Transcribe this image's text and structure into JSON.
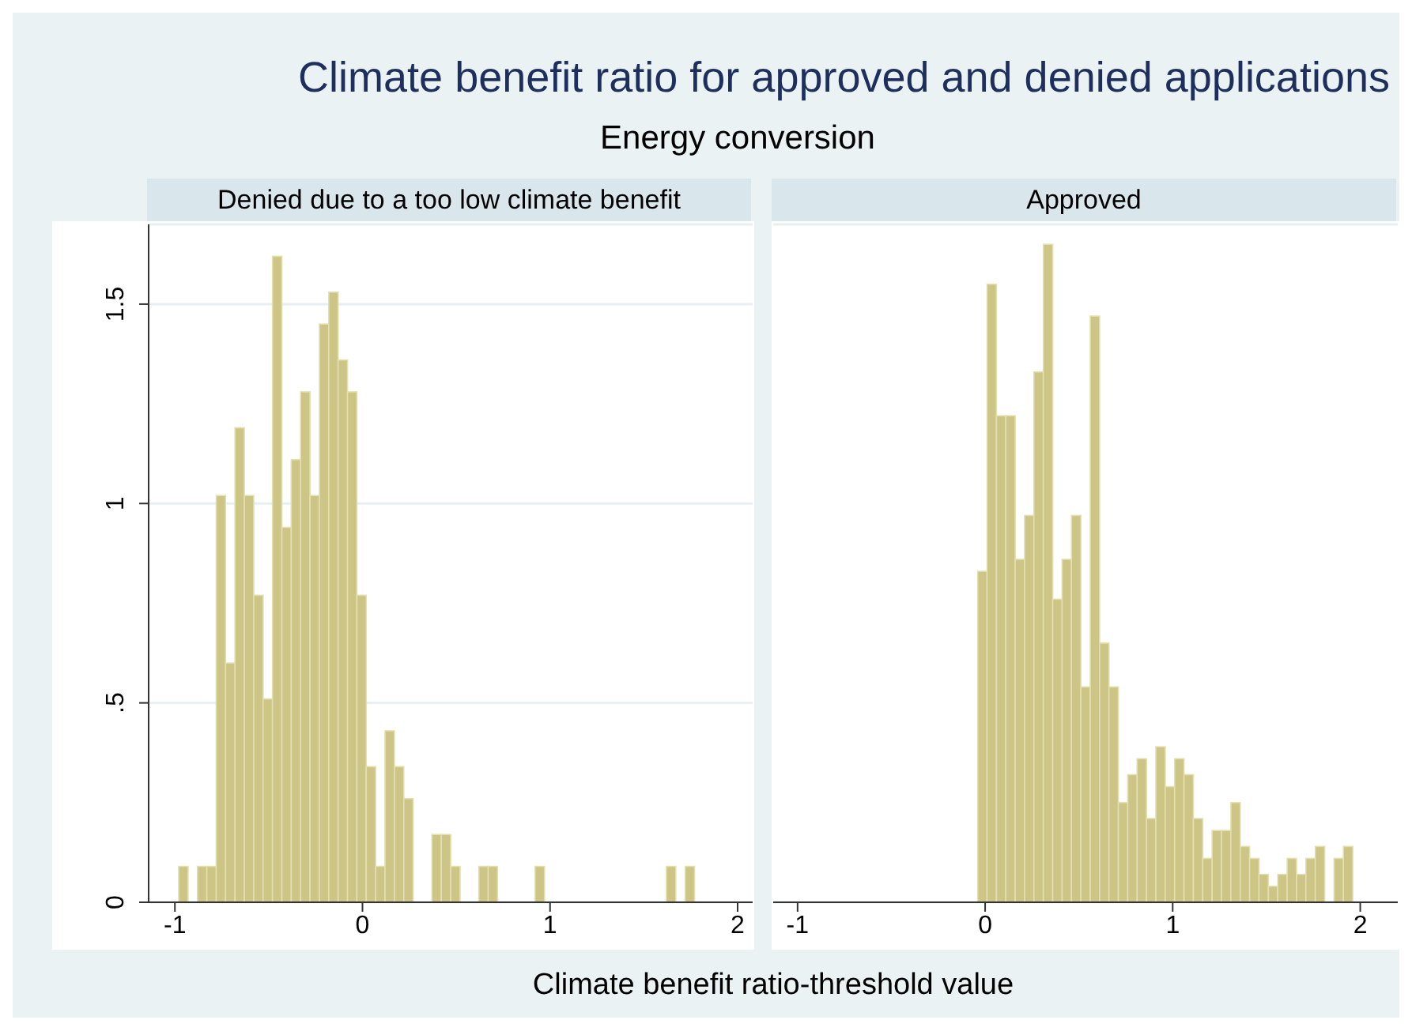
{
  "chart_data": [
    {
      "type": "histogram",
      "title": "Denied due to a too low climate benefit",
      "annotations": [
        "Climate benefit ratio for approved and denied applications",
        "Energy conversion"
      ],
      "xlabel": "Climate benefit ratio-threshold value",
      "color": "#cdc585",
      "bins": [
        -0.98,
        -0.93,
        -0.88,
        -0.83,
        -0.78,
        -0.73,
        -0.68,
        -0.63,
        -0.58,
        -0.53,
        -0.48,
        -0.43,
        -0.38,
        -0.33,
        -0.28,
        -0.23,
        -0.18,
        -0.13,
        -0.08,
        -0.03,
        0.02,
        0.07,
        0.12,
        0.17,
        0.22,
        0.27,
        0.32,
        0.37,
        0.42,
        0.47,
        0.52,
        0.57,
        0.62,
        0.67,
        0.72,
        0.77,
        0.82,
        0.87,
        0.92,
        0.97,
        1.02,
        1.07,
        1.12,
        1.17,
        1.22,
        1.27,
        1.32,
        1.37,
        1.42,
        1.47,
        1.52,
        1.57,
        1.62,
        1.67,
        1.72,
        1.77
      ],
      "values": [
        0.09,
        0,
        0.09,
        0.09,
        1.02,
        0.6,
        1.19,
        1.02,
        0.77,
        0.51,
        1.62,
        0.94,
        1.11,
        1.28,
        1.02,
        1.45,
        1.53,
        1.36,
        1.28,
        0.77,
        0.34,
        0.09,
        0.43,
        0.34,
        0.26,
        0,
        0,
        0.17,
        0.17,
        0.09,
        0,
        0,
        0.09,
        0.09,
        0,
        0,
        0,
        0,
        0.09,
        0,
        0,
        0,
        0,
        0,
        0,
        0,
        0,
        0,
        0,
        0,
        0,
        0,
        0.09,
        0,
        0.09
      ],
      "xlim": [
        -1.14,
        2.08
      ],
      "xticks": [
        -1,
        0,
        1,
        2
      ],
      "ylim": [
        0,
        1.7
      ],
      "yticks": [
        0,
        {
          "value": 0.5,
          "label": ".5"
        },
        1,
        1.5
      ],
      "grid": "y"
    },
    {
      "type": "histogram",
      "title": "Approved",
      "color": "#cdc585",
      "bins": [
        -0.04,
        0.01,
        0.06,
        0.11,
        0.16,
        0.21,
        0.26,
        0.31,
        0.36,
        0.41,
        0.46,
        0.51,
        0.56,
        0.61,
        0.66,
        0.71,
        0.76,
        0.81,
        0.86,
        0.91,
        0.96,
        1.01,
        1.06,
        1.11,
        1.16,
        1.21,
        1.26,
        1.31,
        1.36,
        1.41,
        1.46,
        1.51,
        1.56,
        1.61,
        1.66,
        1.71,
        1.76,
        1.81,
        1.86,
        1.91,
        1.96
      ],
      "values": [
        0.83,
        1.55,
        1.22,
        1.22,
        0.86,
        0.97,
        1.33,
        1.65,
        0.76,
        0.86,
        0.97,
        0.54,
        1.47,
        0.65,
        0.54,
        0.25,
        0.32,
        0.36,
        0.21,
        0.39,
        0.29,
        0.36,
        0.32,
        0.21,
        0.11,
        0.18,
        0.18,
        0.25,
        0.14,
        0.11,
        0.07,
        0.04,
        0.07,
        0.11,
        0.07,
        0.11,
        0.14,
        0,
        0.11,
        0.14
      ],
      "xlim": [
        -1.13,
        2.2
      ],
      "xticks": [
        -1,
        0,
        1,
        2
      ],
      "ylim": [
        0,
        1.7
      ],
      "yticks": [
        0,
        0.5,
        1,
        1.5
      ],
      "grid": "y",
      "tick_labels": "x"
    }
  ]
}
